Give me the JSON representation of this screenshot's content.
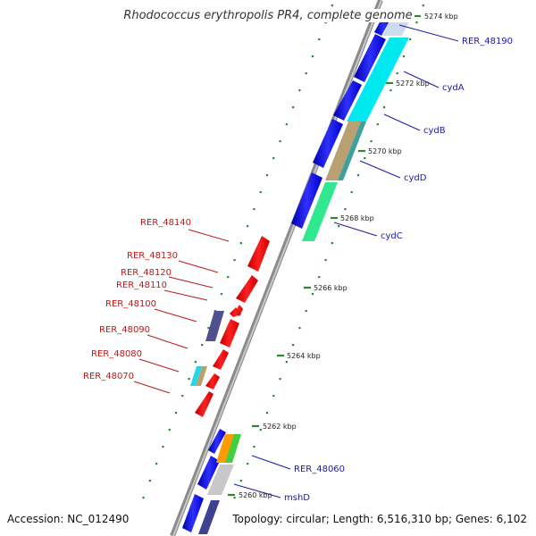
{
  "title": "Rhodococcus erythropolis PR4, complete genome",
  "footer": {
    "accession": "Accession: NC_012490",
    "topology": "Topology: circular; Length: 6,516,310 bp; Genes: 6,102"
  },
  "scale_labels": [
    "5274 kbp",
    "5272 kbp",
    "5270 kbp",
    "5268 kbp",
    "5266 kbp",
    "5264 kbp",
    "5262 kbp",
    "5260 kbp"
  ],
  "right_labels": [
    "RER_48190",
    "cydA",
    "cydB",
    "cydD",
    "cydC",
    "RER_48060",
    "mshD"
  ],
  "left_labels": [
    "RER_48140",
    "RER_48130",
    "RER_48120",
    "RER_48110",
    "RER_48100",
    "RER_48090",
    "RER_48080",
    "RER_48070"
  ],
  "colors": {
    "forward_strand": "#1010e0",
    "reverse_strand": "#e01010",
    "right_label": "#1a1aa8",
    "left_label": "#c01818",
    "ticks": "#2a8a2a"
  }
}
